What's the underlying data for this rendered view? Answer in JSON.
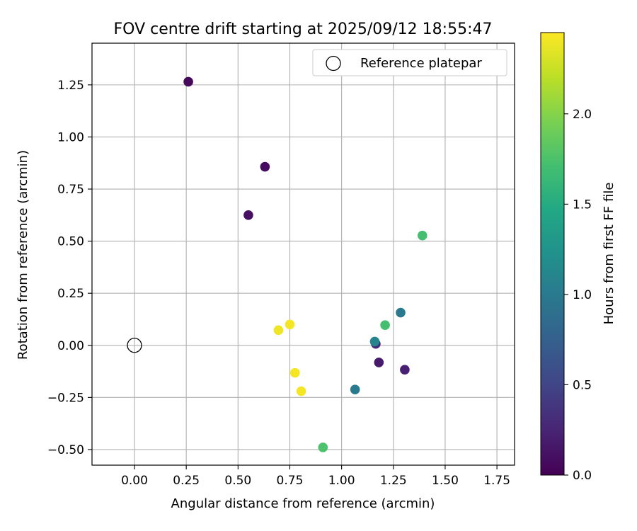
{
  "chart_data": {
    "type": "scatter",
    "title": "FOV centre drift starting at 2025/09/12 18:55:47",
    "xlabel": "Angular distance from reference (arcmin)",
    "ylabel": "Rotation from reference (arcmin)",
    "xlim": [
      -0.205,
      1.835
    ],
    "ylim": [
      -0.575,
      1.45
    ],
    "xticks": [
      0.0,
      0.25,
      0.5,
      0.75,
      1.0,
      1.25,
      1.5,
      1.75
    ],
    "xtick_labels": [
      "0.00",
      "0.25",
      "0.50",
      "0.75",
      "1.00",
      "1.25",
      "1.50",
      "1.75"
    ],
    "yticks": [
      -0.5,
      -0.25,
      0.0,
      0.25,
      0.5,
      0.75,
      1.0,
      1.25
    ],
    "ytick_labels": [
      "−0.50",
      "−0.25",
      "0.00",
      "0.25",
      "0.50",
      "0.75",
      "1.00",
      "1.25"
    ],
    "grid": true,
    "legend": {
      "position": "top-right",
      "entries": [
        "Reference platepar"
      ]
    },
    "reference_point": {
      "x": 0.0,
      "y": 0.0,
      "label": "Reference platepar"
    },
    "colorbar": {
      "label": "Hours from first FF file",
      "colormap": "viridis",
      "range": [
        0.0,
        2.45
      ],
      "ticks": [
        0.0,
        0.5,
        1.0,
        1.5,
        2.0
      ],
      "tick_labels": [
        "0.0",
        "0.5",
        "1.0",
        "1.5",
        "2.0"
      ]
    },
    "points": [
      {
        "x": 0.26,
        "y": 1.265,
        "hours": 0.05
      },
      {
        "x": 0.63,
        "y": 0.857,
        "hours": 0.08
      },
      {
        "x": 0.55,
        "y": 0.625,
        "hours": 0.1
      },
      {
        "x": 1.18,
        "y": -0.082,
        "hours": 0.18
      },
      {
        "x": 1.305,
        "y": -0.117,
        "hours": 0.22
      },
      {
        "x": 1.165,
        "y": 0.007,
        "hours": 0.3
      },
      {
        "x": 1.065,
        "y": -0.212,
        "hours": 1.0
      },
      {
        "x": 1.16,
        "y": 0.018,
        "hours": 1.1
      },
      {
        "x": 1.285,
        "y": 0.157,
        "hours": 1.0
      },
      {
        "x": 1.21,
        "y": 0.097,
        "hours": 1.72
      },
      {
        "x": 1.39,
        "y": 0.527,
        "hours": 1.72
      },
      {
        "x": 0.91,
        "y": -0.49,
        "hours": 1.75
      },
      {
        "x": 0.695,
        "y": 0.073,
        "hours": 2.4
      },
      {
        "x": 0.75,
        "y": 0.1,
        "hours": 2.42
      },
      {
        "x": 0.775,
        "y": -0.132,
        "hours": 2.42
      },
      {
        "x": 0.805,
        "y": -0.22,
        "hours": 2.42
      }
    ]
  }
}
